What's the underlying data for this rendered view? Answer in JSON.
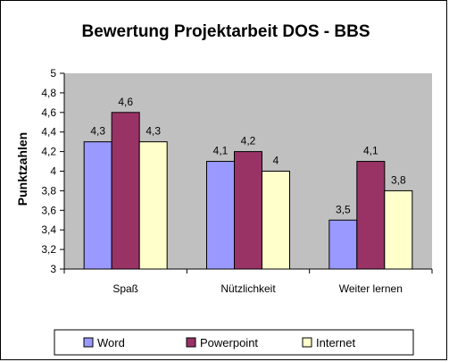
{
  "chart_data": {
    "type": "bar",
    "title": "Bewertung Projektarbeit DOS - BBS",
    "ylabel": "Punktzahlen",
    "xlabel": "",
    "ylim": [
      3,
      5
    ],
    "ytick_step": 0.2,
    "decimal_separator": ",",
    "grid": false,
    "legend_position": "bottom",
    "categories": [
      "Spaß",
      "Nützlichkeit",
      "Weiter lernen"
    ],
    "series": [
      {
        "name": "Word",
        "values": [
          4.3,
          4.1,
          3.5
        ],
        "color": "#9999FF"
      },
      {
        "name": "Powerpoint",
        "values": [
          4.6,
          4.2,
          4.1
        ],
        "color": "#993366"
      },
      {
        "name": "Internet",
        "values": [
          4.3,
          4.0,
          3.8
        ],
        "color": "#FFFFCC"
      }
    ]
  },
  "colors": {
    "plot_background": "#C0C0C0",
    "chart_background": "#FFFFFF",
    "border": "#000000"
  }
}
